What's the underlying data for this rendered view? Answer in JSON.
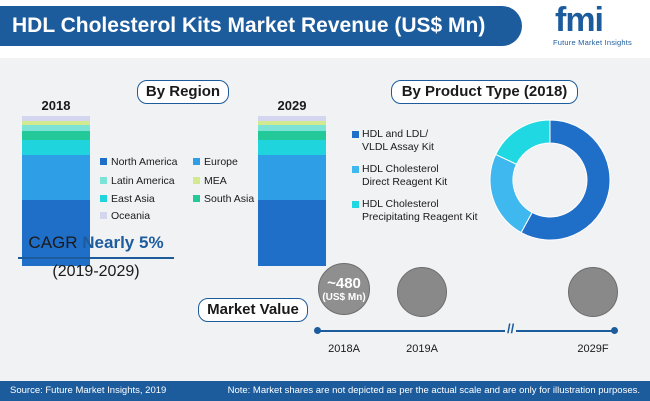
{
  "header": {
    "title": "HDL Cholesterol Kits Market Revenue (US$ Mn)",
    "logo_mark": "fmi",
    "logo_sub": "Future Market Insights"
  },
  "by_region_label": "By Region",
  "by_product_label": "By Product Type (2018)",
  "market_value_label": "Market Value",
  "cagr": {
    "label": "CAGR",
    "value": "Nearly 5%",
    "period": "(2019-2029)"
  },
  "footer": {
    "source": "Source: Future Market Insights, 2019",
    "note": "Note: Market shares are not depicted as per the actual scale and are only for illustration purposes."
  },
  "colors": {
    "north_america": "#1f6ec7",
    "europe": "#2e9ee6",
    "latin_america": "#7de3d6",
    "mea": "#d3e98f",
    "east_asia": "#1fd4dc",
    "south_asia": "#24c99a",
    "oceania": "#d3d6ee",
    "hdl_ldl": "#1f6ec7",
    "direct": "#3fb8f0",
    "precip": "#1fd8e2",
    "brand": "#1c5c9d"
  },
  "chart_data": [
    {
      "type": "bar",
      "stacked": true,
      "categories": [
        "2018",
        "2029"
      ],
      "series": [
        {
          "name": "North America",
          "values": [
            44,
            44
          ]
        },
        {
          "name": "Europe",
          "values": [
            30,
            30
          ]
        },
        {
          "name": "East Asia",
          "values": [
            10,
            10
          ]
        },
        {
          "name": "South Asia",
          "values": [
            6,
            6
          ]
        },
        {
          "name": "Latin America",
          "values": [
            4,
            4
          ]
        },
        {
          "name": "MEA",
          "values": [
            3,
            3
          ]
        },
        {
          "name": "Oceania",
          "values": [
            3,
            3
          ]
        }
      ],
      "legend": [
        {
          "name": "North America",
          "color_key": "north_america"
        },
        {
          "name": "Europe",
          "color_key": "europe"
        },
        {
          "name": "Latin America",
          "color_key": "latin_america"
        },
        {
          "name": "MEA",
          "color_key": "mea"
        },
        {
          "name": "East Asia",
          "color_key": "east_asia"
        },
        {
          "name": "South Asia",
          "color_key": "south_asia"
        },
        {
          "name": "Oceania",
          "color_key": "oceania"
        }
      ]
    },
    {
      "type": "pie",
      "donut": true,
      "labels": [
        "HDL and LDL/ VLDL Assay Kit",
        "HDL Cholesterol Direct Reagent Kit",
        "HDL Cholesterol Precipitating Reagent Kit"
      ],
      "legend_lines": [
        [
          "HDL and LDL/",
          "VLDL Assay Kit"
        ],
        [
          "HDL Cholesterol",
          "Direct Reagent Kit"
        ],
        [
          "HDL Cholesterol",
          "Precipitating Reagent Kit"
        ]
      ],
      "values": [
        58,
        24,
        18
      ],
      "color_keys": [
        "hdl_ldl",
        "direct",
        "precip"
      ]
    },
    {
      "type": "scatter",
      "x": [
        "2018A",
        "2019A",
        "2029F"
      ],
      "highlight": {
        "x": "2018A",
        "value": "~480",
        "unit": "(US$ Mn)"
      }
    }
  ]
}
